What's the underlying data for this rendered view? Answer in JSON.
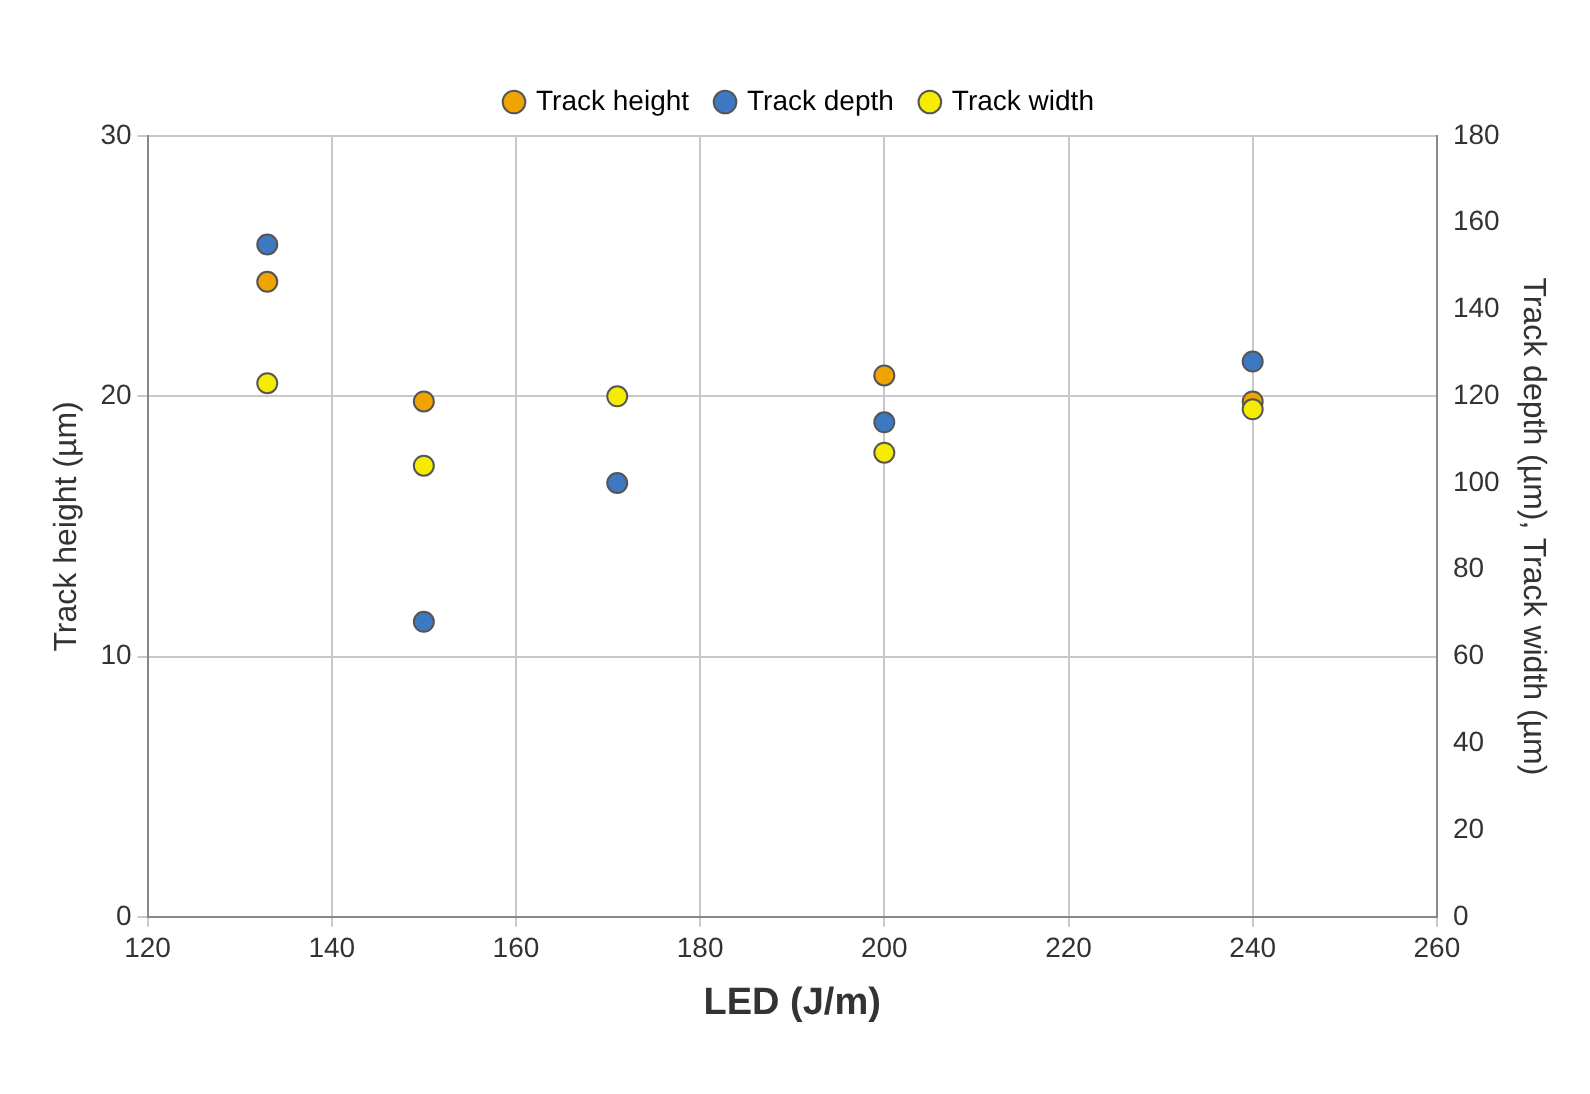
{
  "chart_data": {
    "type": "scatter",
    "xlabel": "LED (J/m)",
    "ylabel": "Track height (µm)",
    "y2label": "Track depth (µm), Track width (µm)",
    "series": [
      {
        "name": "Track height",
        "color": "#f0a400",
        "x": [
          133,
          150,
          171,
          200,
          240
        ],
        "values": [
          24.4,
          19.8,
          null,
          20.8,
          19.8
        ]
      },
      {
        "name": "Track depth",
        "color": "#3d79c2",
        "axis": "y2",
        "x": [
          133,
          150,
          171,
          200,
          240
        ],
        "values": [
          155,
          68,
          100,
          114,
          128
        ]
      },
      {
        "name": "Track width",
        "color": "#f5ec00",
        "axis": "y2",
        "x": [
          133,
          150,
          171,
          200,
          240
        ],
        "values": [
          123,
          104,
          120,
          107,
          117
        ]
      }
    ],
    "xlim": [
      120,
      260
    ],
    "xticks": [
      120,
      140,
      160,
      180,
      200,
      220,
      240,
      260
    ],
    "ylim": [
      0,
      30
    ],
    "yticks": [
      0,
      10,
      20,
      30
    ],
    "y2lim": [
      0,
      180
    ],
    "y2ticks": [
      0,
      20,
      40,
      60,
      80,
      100,
      120,
      140,
      160,
      180
    ],
    "grid": true,
    "legend": "top",
    "marker": "circle"
  }
}
